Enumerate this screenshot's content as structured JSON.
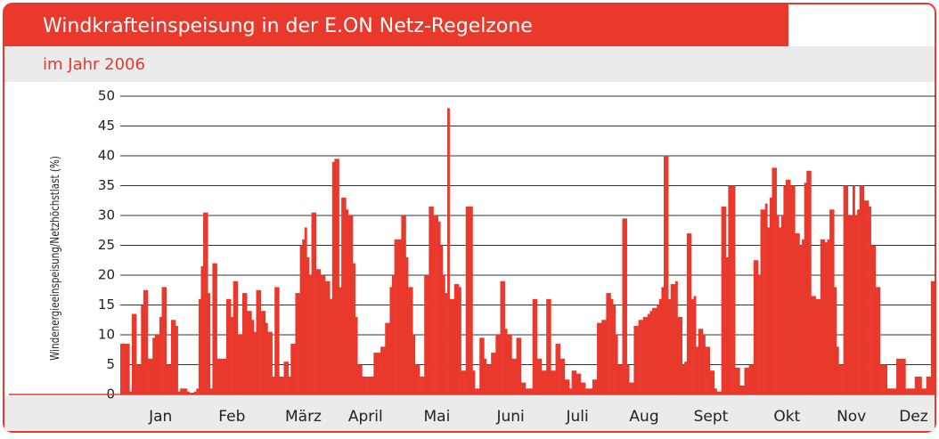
{
  "chart_data": {
    "type": "bar",
    "title": "Windkrafteinspeisung in der  E.ON Netz-Regelzone",
    "subtitle": "im Jahr 2006",
    "y_label": "Windenergieeinspeisung/Netzhöchstlast (%)",
    "color": "#e8392c",
    "grid": true,
    "ylim": [
      0,
      50
    ],
    "yticks": [
      0,
      5,
      10,
      15,
      20,
      25,
      30,
      35,
      40,
      45,
      50
    ],
    "xticks": [
      {
        "value": 17,
        "label": "Jan"
      },
      {
        "value": 48,
        "label": "Feb"
      },
      {
        "value": 79,
        "label": "März"
      },
      {
        "value": 106,
        "label": "April"
      },
      {
        "value": 137,
        "label": "Mai"
      },
      {
        "value": 169,
        "label": "Juni"
      },
      {
        "value": 198,
        "label": "Juli"
      },
      {
        "value": 227,
        "label": "Aug"
      },
      {
        "value": 256,
        "label": "Sept"
      },
      {
        "value": 289,
        "label": "Okt"
      },
      {
        "value": 317,
        "label": "Nov"
      },
      {
        "value": 344,
        "label": "Dez"
      }
    ],
    "values": [
      8.5,
      8.5,
      8.5,
      8.5,
      0.5,
      13.5,
      13.5,
      5,
      5,
      15,
      17.5,
      17.5,
      6,
      6,
      9.5,
      10,
      10,
      13,
      18,
      18,
      5,
      5,
      12.5,
      12.5,
      11.5,
      0.5,
      1,
      1,
      1,
      0.5,
      0.3,
      0.3,
      0.5,
      1,
      16,
      21.5,
      30.5,
      30.5,
      17,
      1,
      22,
      22,
      6,
      6,
      6,
      6,
      16,
      16,
      13,
      19,
      19,
      10,
      10,
      17,
      17,
      14,
      14,
      12.5,
      10.5,
      17.5,
      17.5,
      14,
      14,
      12,
      10.5,
      10.5,
      3,
      18,
      18,
      3,
      3,
      5.5,
      5.5,
      3,
      8.5,
      8.5,
      17,
      17,
      25,
      26,
      28,
      23,
      20,
      30.5,
      30.5,
      21,
      21,
      20,
      20,
      19,
      19,
      16,
      39,
      39.5,
      39.5,
      18,
      33,
      33,
      31,
      30,
      30,
      22,
      13,
      5,
      5,
      3,
      3,
      3,
      3,
      3,
      7,
      7,
      7,
      8,
      8,
      12,
      12,
      18,
      20,
      26,
      26,
      26,
      30,
      30,
      23,
      18,
      18,
      10,
      5,
      5,
      3,
      3,
      20,
      20,
      31.5,
      31.5,
      30,
      30,
      29,
      25,
      20,
      17,
      48,
      16,
      16,
      18.5,
      18.5,
      18,
      4,
      4,
      31.5,
      31.5,
      31.5,
      4,
      1,
      1,
      9.5,
      9.5,
      6,
      5,
      5,
      7,
      7,
      10,
      10,
      19,
      19,
      11,
      10,
      10,
      6,
      6,
      9.5,
      9.5,
      2,
      2,
      1,
      1,
      1,
      16,
      16,
      6,
      6,
      4,
      4,
      16,
      16,
      4,
      4,
      8.5,
      8.5,
      6,
      6,
      2.5,
      2.5,
      1,
      4,
      4,
      3.5,
      3.5,
      2,
      2,
      1,
      1,
      1,
      2.5,
      2.5,
      12,
      12,
      12.5,
      12.5,
      17,
      17,
      16,
      15,
      10,
      5,
      5,
      29.5,
      29.5,
      5,
      2,
      2,
      11.5,
      11.5,
      12.5,
      12.5,
      13,
      13,
      13.5,
      14,
      14.5,
      14.5,
      15,
      16,
      18,
      40,
      40,
      16,
      18.5,
      18.5,
      19,
      13,
      13,
      5,
      5.5,
      27,
      27,
      16,
      16.5,
      8,
      11,
      11,
      10,
      8,
      8,
      4,
      4,
      1,
      0.5,
      0.5,
      31.5,
      31.5,
      23,
      35,
      35,
      35,
      4.5,
      4.5,
      1.5,
      1.5,
      4.5,
      4.5,
      5,
      5,
      22.5,
      22.5,
      20,
      31,
      31,
      32,
      28,
      33,
      38,
      38,
      30,
      28,
      30,
      35,
      36,
      36,
      35,
      35,
      27,
      27,
      25,
      26,
      35.5,
      37.5,
      37.5,
      16.5,
      16.5,
      16,
      16,
      26,
      26,
      25.5,
      26,
      31,
      31,
      18,
      8,
      5,
      5,
      35,
      35,
      30,
      30,
      35,
      30,
      31,
      35,
      35,
      32.5,
      32.5,
      31.5,
      25,
      25,
      18,
      18,
      5,
      5,
      5,
      1,
      1,
      1,
      1,
      6,
      6,
      6,
      6,
      1,
      1,
      1,
      1,
      3,
      3,
      3,
      1,
      1,
      3,
      3,
      19,
      19
    ]
  }
}
